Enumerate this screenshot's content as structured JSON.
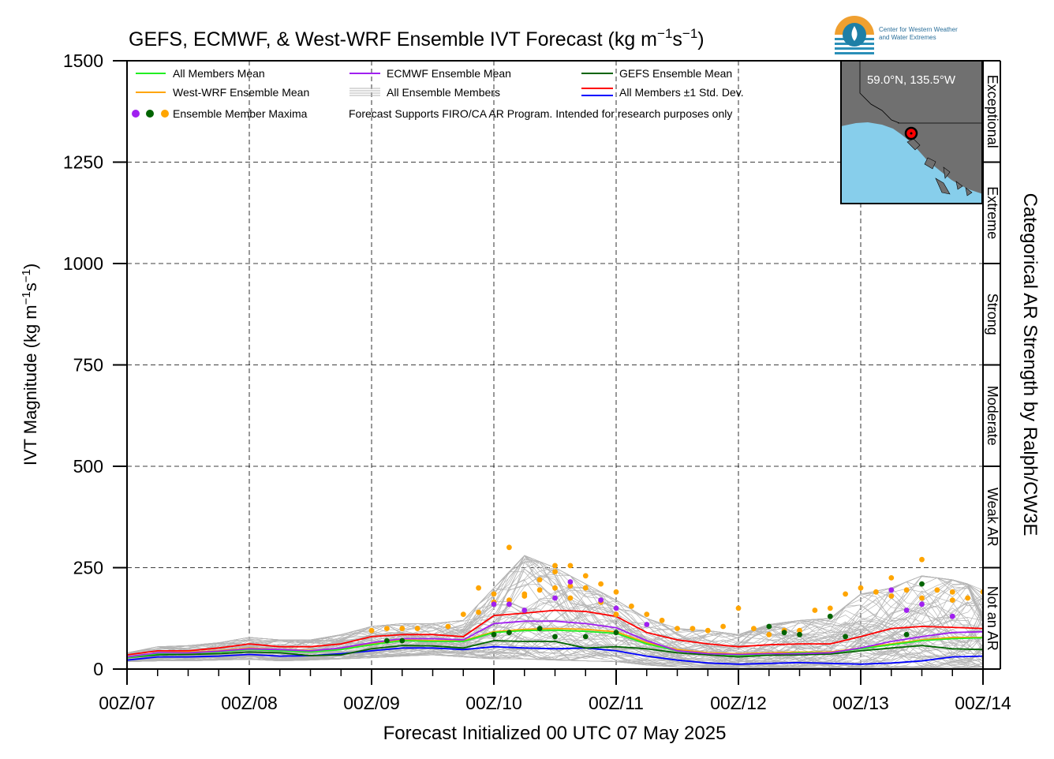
{
  "chart_data": {
    "type": "line",
    "title_main": "GEFS, ECMWF, & West-WRF Ensemble IVT Forecast (kg m",
    "title_exp1": "−1",
    "title_mid": "s",
    "title_exp2": "−1",
    "title_end": ")",
    "ylabel_main": "IVT Magnitude (kg m",
    "ylabel_exp1": "−1",
    "ylabel_mid": "s",
    "ylabel_exp2": "−1",
    "ylabel_end": ")",
    "xlabel": "Forecast Initialized 00 UTC 07 May 2025",
    "right_label": "Categorical AR Strength by Ralph/CW3E",
    "ylim": [
      0,
      1500
    ],
    "xlim": [
      0,
      168
    ],
    "grid": true,
    "y_ticks": [
      0,
      250,
      500,
      750,
      1000,
      1250,
      1500
    ],
    "y_tick_labels": [
      "0",
      "250",
      "500",
      "750",
      "1000",
      "1250",
      "1500"
    ],
    "x_ticks": [
      0,
      24,
      48,
      72,
      96,
      120,
      144,
      168
    ],
    "x_tick_labels": [
      "00Z/07",
      "00Z/08",
      "00Z/09",
      "00Z/10",
      "00Z/11",
      "00Z/12",
      "00Z/13",
      "00Z/14"
    ],
    "categories": [
      {
        "label": "Not an AR",
        "min": 0,
        "max": 250
      },
      {
        "label": "Weak AR",
        "min": 250,
        "max": 500
      },
      {
        "label": "Moderate",
        "min": 500,
        "max": 750
      },
      {
        "label": "Strong",
        "min": 750,
        "max": 1000
      },
      {
        "label": "Extreme",
        "min": 1000,
        "max": 1250
      },
      {
        "label": "Exceptional",
        "min": 1250,
        "max": 1500
      }
    ],
    "legend": {
      "placement": "top-left",
      "items": [
        {
          "label": "All Members Mean",
          "color": "#22ee22",
          "kind": "line"
        },
        {
          "label": "ECMWF Ensemble Mean",
          "color": "#a020f0",
          "kind": "line"
        },
        {
          "label": "GEFS Ensemble Mean",
          "color": "#006400",
          "kind": "line"
        },
        {
          "label": "West-WRF Ensemble Mean",
          "color": "#ffa500",
          "kind": "line"
        },
        {
          "label": "All Ensemble Members",
          "color": "#b4b4b4",
          "kind": "multiline"
        },
        {
          "label": "All Members ±1 Std. Dev.",
          "color": "#ff0000",
          "color2": "#0000ff",
          "kind": "dualline"
        },
        {
          "label": "Ensemble Member Maxima",
          "colors": [
            "#a020f0",
            "#006400",
            "#ffa500"
          ],
          "kind": "dots"
        }
      ],
      "note": "Forecast Supports FIRO/CA AR Program. Intended for research purposes only"
    },
    "inset": {
      "location_label": "59.0°N, 135.5°W",
      "land_color": "#707070",
      "water_color": "#87ceeb",
      "marker_color": "#ff0000"
    },
    "logo_text_line1": "Center for Western Weather",
    "logo_text_line2": "and Water Extremes",
    "series": [
      {
        "name": "All Members Mean",
        "color": "#22ee22",
        "x": [
          0,
          6,
          12,
          18,
          24,
          30,
          36,
          42,
          48,
          54,
          60,
          66,
          72,
          78,
          84,
          90,
          96,
          102,
          108,
          114,
          120,
          126,
          132,
          138,
          144,
          150,
          156,
          162,
          168
        ],
        "y": [
          28,
          38,
          40,
          42,
          48,
          45,
          42,
          48,
          60,
          70,
          68,
          68,
          90,
          95,
          96,
          93,
          88,
          62,
          45,
          38,
          34,
          37,
          40,
          40,
          50,
          60,
          70,
          75,
          77
        ]
      },
      {
        "name": "ECMWF Ensemble Mean",
        "color": "#a020f0",
        "x": [
          0,
          6,
          12,
          18,
          24,
          30,
          36,
          42,
          48,
          54,
          60,
          66,
          72,
          78,
          84,
          90,
          96,
          102,
          108,
          114,
          120,
          126,
          132,
          138,
          144,
          150,
          156,
          162,
          168
        ],
        "y": [
          30,
          40,
          40,
          44,
          50,
          48,
          45,
          52,
          65,
          75,
          75,
          72,
          112,
          118,
          118,
          112,
          102,
          70,
          45,
          38,
          36,
          38,
          38,
          40,
          52,
          68,
          80,
          90,
          92
        ]
      },
      {
        "name": "GEFS Ensemble Mean",
        "color": "#006400",
        "x": [
          0,
          6,
          12,
          18,
          24,
          30,
          36,
          42,
          48,
          54,
          60,
          66,
          72,
          78,
          84,
          90,
          96,
          102,
          108,
          114,
          120,
          126,
          132,
          138,
          144,
          150,
          156,
          162,
          168
        ],
        "y": [
          28,
          35,
          36,
          38,
          42,
          40,
          33,
          35,
          50,
          58,
          57,
          52,
          70,
          68,
          68,
          52,
          55,
          50,
          40,
          35,
          30,
          34,
          35,
          37,
          45,
          52,
          58,
          50,
          48
        ]
      },
      {
        "name": "West-WRF Ensemble Mean",
        "color": "#ffa500",
        "x": [
          0,
          6,
          12,
          18,
          24,
          30,
          36,
          42,
          48,
          54,
          60,
          66,
          72,
          78,
          84,
          90,
          96,
          102,
          108,
          114,
          120,
          126,
          132,
          138,
          144,
          150,
          156,
          162,
          168
        ],
        "y": [
          30,
          40,
          42,
          45,
          52,
          48,
          46,
          50,
          62,
          72,
          70,
          70,
          92,
          98,
          100,
          98,
          92,
          65,
          48,
          40,
          38,
          40,
          42,
          42,
          52,
          62,
          72,
          78,
          78
        ]
      },
      {
        "name": "All Members +1 Std. Dev.",
        "color": "#ff0000",
        "x": [
          0,
          6,
          12,
          18,
          24,
          30,
          36,
          42,
          48,
          54,
          60,
          66,
          72,
          78,
          84,
          90,
          96,
          102,
          108,
          114,
          120,
          126,
          132,
          138,
          144,
          150,
          156,
          162,
          168
        ],
        "y": [
          35,
          45,
          45,
          52,
          62,
          55,
          55,
          62,
          80,
          85,
          85,
          80,
          132,
          138,
          145,
          142,
          130,
          90,
          72,
          62,
          55,
          60,
          62,
          62,
          80,
          100,
          105,
          103,
          100
        ]
      },
      {
        "name": "All Members −1 Std. Dev.",
        "color": "#0000ff",
        "x": [
          0,
          6,
          12,
          18,
          24,
          30,
          36,
          42,
          48,
          54,
          60,
          66,
          72,
          78,
          84,
          90,
          96,
          102,
          108,
          114,
          120,
          126,
          132,
          138,
          144,
          150,
          156,
          162,
          168
        ],
        "y": [
          22,
          30,
          30,
          32,
          36,
          32,
          33,
          38,
          45,
          52,
          52,
          48,
          55,
          52,
          50,
          52,
          45,
          32,
          22,
          15,
          12,
          14,
          16,
          14,
          12,
          15,
          20,
          30,
          32
        ]
      }
    ],
    "member_envelope": {
      "x": [
        0,
        6,
        12,
        18,
        24,
        30,
        36,
        42,
        48,
        54,
        60,
        66,
        72,
        78,
        84,
        90,
        96,
        102,
        108,
        114,
        120,
        126,
        132,
        138,
        144,
        150,
        156,
        162,
        168
      ],
      "low": [
        18,
        20,
        20,
        22,
        24,
        20,
        22,
        25,
        28,
        32,
        35,
        30,
        25,
        25,
        22,
        20,
        18,
        10,
        5,
        3,
        3,
        3,
        3,
        3,
        3,
        3,
        3,
        3,
        3
      ],
      "high": [
        40,
        55,
        58,
        65,
        78,
        72,
        72,
        85,
        105,
        112,
        112,
        120,
        200,
        280,
        250,
        210,
        170,
        125,
        100,
        95,
        85,
        110,
        120,
        125,
        185,
        200,
        230,
        220,
        200
      ],
      "count": 80
    },
    "maxima": {
      "orange": {
        "color": "#ffa500",
        "x": [
          57,
          63,
          69,
          69,
          72,
          75,
          78,
          81,
          84,
          87,
          90,
          93,
          96,
          99,
          102,
          105,
          108,
          111,
          114,
          117,
          120,
          123,
          126,
          129,
          132,
          135,
          138,
          141,
          144,
          147,
          150,
          153,
          156,
          159,
          162,
          165,
          168,
          48,
          51,
          54,
          66,
          72,
          75,
          78,
          81,
          84,
          84,
          87,
          87,
          90,
          93,
          96,
          150,
          156,
          162
        ],
        "y": [
          100,
          105,
          140,
          200,
          185,
          300,
          185,
          195,
          255,
          255,
          230,
          210,
          190,
          155,
          135,
          120,
          100,
          100,
          95,
          105,
          150,
          100,
          85,
          95,
          95,
          145,
          150,
          185,
          200,
          190,
          225,
          195,
          270,
          195,
          190,
          175,
          190,
          95,
          100,
          100,
          135,
          165,
          170,
          180,
          220,
          240,
          200,
          175,
          205,
          200,
          165,
          135,
          180,
          175,
          170
        ]
      },
      "purple": {
        "color": "#a020f0",
        "x": [
          72,
          75,
          78,
          84,
          87,
          93,
          96,
          102,
          150,
          153,
          156,
          162
        ],
        "y": [
          160,
          160,
          145,
          175,
          215,
          170,
          150,
          110,
          195,
          145,
          160,
          130
        ]
      },
      "green": {
        "color": "#006400",
        "x": [
          51,
          54,
          72,
          75,
          81,
          84,
          90,
          96,
          126,
          129,
          132,
          138,
          141,
          153,
          156
        ],
        "y": [
          70,
          70,
          85,
          90,
          100,
          80,
          80,
          90,
          105,
          90,
          85,
          130,
          80,
          85,
          210
        ]
      }
    }
  }
}
